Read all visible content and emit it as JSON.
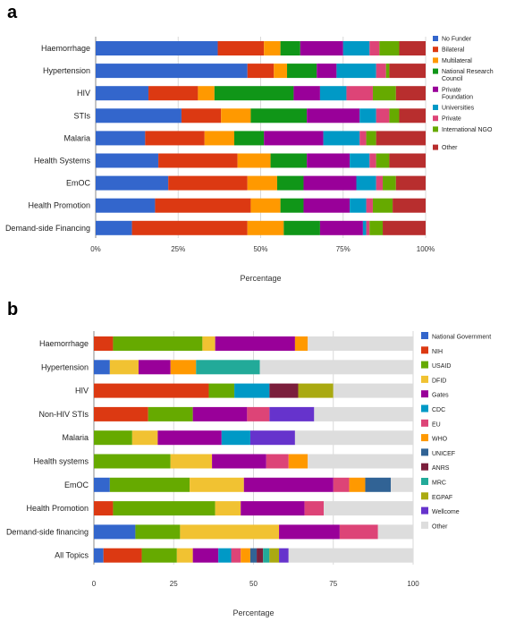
{
  "panels": [
    {
      "label": "a",
      "chart_data": {
        "type": "bar",
        "orientation": "horizontal",
        "stacked": true,
        "xlabel": "Percentage",
        "xlim": [
          0,
          100
        ],
        "tick_labels": [
          "0%",
          "25%",
          "50%",
          "75%",
          "100%"
        ],
        "grid": true,
        "legend_position": "right",
        "categories": [
          "Haemorrhage",
          "Hypertension",
          "HIV",
          "STIs",
          "Malaria",
          "Health Systems",
          "EmOC",
          "Health Promotion",
          "Demand-side Financing"
        ],
        "series": [
          {
            "name": "No Funder",
            "color": "#3366cc",
            "values": [
              37,
              46,
              16,
              26,
              15,
              19,
              22,
              18,
              11
            ]
          },
          {
            "name": "Bilateral",
            "color": "#dc3912",
            "values": [
              14,
              8,
              15,
              12,
              18,
              24,
              24,
              29,
              35
            ]
          },
          {
            "name": "Multilateral",
            "color": "#ff9900",
            "values": [
              5,
              4,
              5,
              9,
              9,
              10,
              9,
              9,
              11
            ]
          },
          {
            "name": "National Research Council",
            "color": "#109618",
            "values": [
              6,
              9,
              24,
              17,
              9,
              11,
              8,
              7,
              11
            ]
          },
          {
            "name": "Private Foundation",
            "color": "#990099",
            "values": [
              13,
              6,
              8,
              16,
              18,
              13,
              16,
              14,
              13
            ]
          },
          {
            "name": "Universities",
            "color": "#0099c6",
            "values": [
              8,
              12,
              8,
              5,
              11,
              6,
              6,
              5,
              1
            ]
          },
          {
            "name": "Private",
            "color": "#dd4477",
            "values": [
              3,
              3,
              8,
              4,
              2,
              2,
              2,
              2,
              1
            ]
          },
          {
            "name": "International NGO",
            "color": "#66aa00",
            "values": [
              6,
              1,
              7,
              3,
              3,
              4,
              4,
              6,
              4
            ]
          },
          {
            "name": "Other",
            "color": "#b82e2e",
            "values": [
              8,
              11,
              9,
              8,
              15,
              11,
              9,
              10,
              13
            ]
          }
        ]
      }
    },
    {
      "label": "b",
      "chart_data": {
        "type": "bar",
        "orientation": "horizontal",
        "stacked": true,
        "xlabel": "Percentage",
        "xlim": [
          0,
          100
        ],
        "tick_labels": [
          "0",
          "25",
          "50",
          "75",
          "100"
        ],
        "grid": true,
        "legend_position": "right",
        "categories": [
          "Haemorrhage",
          "Hypertension",
          "HIV",
          "Non-HIV STIs",
          "Malaria",
          "Health systems",
          "EmOC",
          "Health Promotion",
          "Demand-side financing",
          "All Topics"
        ],
        "series": [
          {
            "name": "National Government",
            "color": "#3366cc",
            "values": [
              0,
              5,
              0,
              0,
              0,
              0,
              5,
              0,
              13,
              3
            ]
          },
          {
            "name": "NIH",
            "color": "#dc3912",
            "values": [
              6,
              0,
              36,
              17,
              0,
              0,
              0,
              6,
              0,
              12
            ]
          },
          {
            "name": "USAID",
            "color": "#66aa00",
            "values": [
              28,
              0,
              8,
              14,
              12,
              24,
              25,
              32,
              14,
              11
            ]
          },
          {
            "name": "DFID",
            "color": "#f1c232",
            "values": [
              4,
              9,
              0,
              0,
              8,
              13,
              17,
              8,
              31,
              5
            ]
          },
          {
            "name": "Gates",
            "color": "#990099",
            "values": [
              25,
              10,
              0,
              17,
              20,
              17,
              28,
              20,
              19,
              8
            ]
          },
          {
            "name": "CDC",
            "color": "#0099c6",
            "values": [
              0,
              0,
              11,
              0,
              9,
              0,
              0,
              0,
              0,
              4
            ]
          },
          {
            "name": "EU",
            "color": "#dd4477",
            "values": [
              0,
              0,
              0,
              7,
              0,
              7,
              5,
              6,
              12,
              3
            ]
          },
          {
            "name": "WHO",
            "color": "#ff9900",
            "values": [
              4,
              8,
              0,
              0,
              0,
              6,
              5,
              0,
              0,
              3
            ]
          },
          {
            "name": "UNICEF",
            "color": "#316395",
            "values": [
              0,
              0,
              0,
              0,
              0,
              0,
              8,
              0,
              0,
              2
            ]
          },
          {
            "name": "ANRS",
            "color": "#7b1f3c",
            "values": [
              0,
              0,
              9,
              0,
              0,
              0,
              0,
              0,
              0,
              2
            ]
          },
          {
            "name": "MRC",
            "color": "#22aa99",
            "values": [
              0,
              20,
              0,
              0,
              0,
              0,
              0,
              0,
              0,
              2
            ]
          },
          {
            "name": "EGPAF",
            "color": "#aaaa11",
            "values": [
              0,
              0,
              11,
              0,
              0,
              0,
              0,
              0,
              0,
              3
            ]
          },
          {
            "name": "Wellcome",
            "color": "#6633cc",
            "values": [
              0,
              0,
              0,
              14,
              14,
              0,
              0,
              0,
              0,
              3
            ]
          },
          {
            "name": "Other",
            "color": "#dddddd",
            "values": [
              33,
              48,
              25,
              31,
              37,
              33,
              7,
              28,
              11,
              39
            ]
          }
        ]
      }
    }
  ]
}
